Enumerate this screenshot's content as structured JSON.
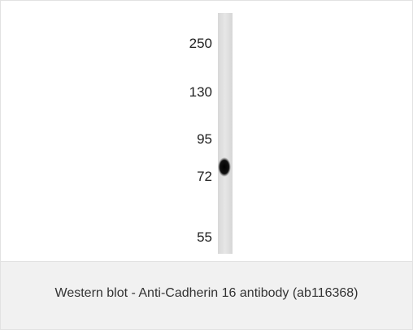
{
  "figure": {
    "markers": [
      250,
      130,
      95,
      72,
      55
    ],
    "caption": "Western blot - Anti-Cadherin 16 antibody (ab116368)"
  }
}
